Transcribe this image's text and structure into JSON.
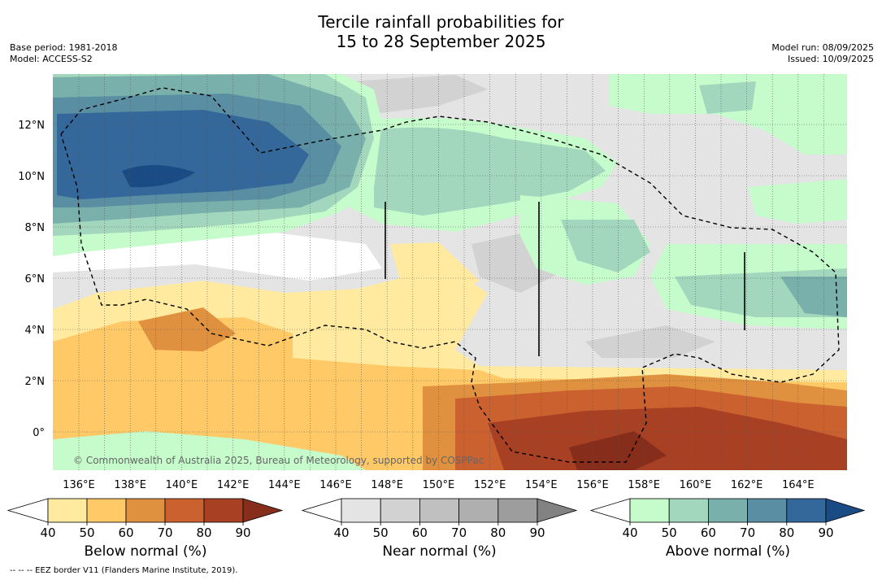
{
  "title": {
    "line1": "Tercile rainfall probabilities for",
    "line2": "15 to 28 September 2025"
  },
  "meta_left": {
    "base_period": "Base period: 1981-2018",
    "model": "Model: ACCESS-S2"
  },
  "meta_right": {
    "model_run": "Model run: 08/09/2025",
    "issued": "Issued: 10/09/2025"
  },
  "map": {
    "lat_labels": [
      "12°N",
      "10°N",
      "8°N",
      "6°N",
      "4°N",
      "2°N",
      "0°"
    ],
    "lon_labels": [
      "136°E",
      "138°E",
      "140°E",
      "142°E",
      "144°E",
      "146°E",
      "148°E",
      "150°E",
      "152°E",
      "154°E",
      "156°E",
      "158°E",
      "160°E",
      "162°E",
      "164°E"
    ],
    "copyright": "© Commonwealth of Australia 2025, Bureau of Meteorology, supported by COSPPac"
  },
  "colorbars": [
    {
      "label": "Below normal (%)",
      "ticks": [
        "40",
        "50",
        "60",
        "70",
        "80",
        "90"
      ],
      "colors": [
        "#ffffff",
        "#ffeaa0",
        "#fec966",
        "#e0913f",
        "#cc6130",
        "#a84124",
        "#872d1c"
      ]
    },
    {
      "label": "Near normal (%)",
      "ticks": [
        "40",
        "50",
        "60",
        "70",
        "80",
        "90"
      ],
      "colors": [
        "#ffffff",
        "#e4e4e4",
        "#d2d2d2",
        "#c0c0c0",
        "#afafaf",
        "#9d9d9d",
        "#828282"
      ]
    },
    {
      "label": "Above normal (%)",
      "ticks": [
        "40",
        "50",
        "60",
        "70",
        "80",
        "90"
      ],
      "colors": [
        "#ffffff",
        "#c6fbcc",
        "#a2d6bd",
        "#7ab0ab",
        "#5a8ea3",
        "#35689a",
        "#1b4b85"
      ]
    }
  ],
  "footnote": "-- -- -- EEZ border V11 (Flanders Marine Institute, 2019)."
}
